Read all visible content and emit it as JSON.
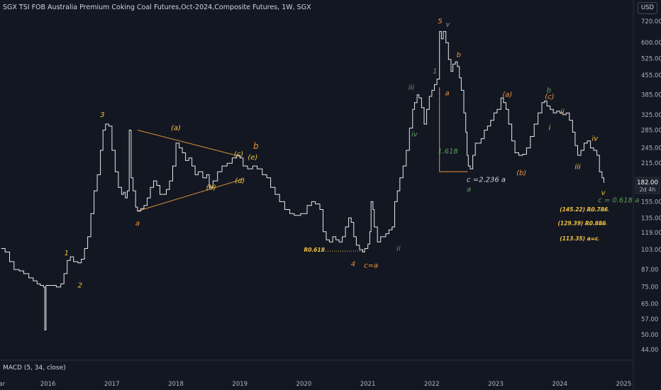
{
  "header": {
    "title": "SGX TSI FOB Australia Premium Coking Coal Futures,Oct-2024,Composite Futures, 1W, SGX",
    "currency": "USD"
  },
  "price_tag": {
    "value": "182.00",
    "countdown": "2d 4h"
  },
  "indicator": {
    "label": "MACD (5, 34, close)"
  },
  "chart_data": {
    "type": "line",
    "yscale": "log",
    "ylim": [
      40,
      800
    ],
    "xlim": [
      2015.25,
      2025.15
    ],
    "y_ticks": [
      "720.00",
      "600.00",
      "525.00",
      "455.00",
      "385.00",
      "325.00",
      "285.00",
      "245.00",
      "215.00",
      "182.00",
      "155.00",
      "135.00",
      "119.00",
      "103.00",
      "87.00",
      "75.00",
      "65.00",
      "57.00",
      "50.00",
      "44.00"
    ],
    "x_ticks": [
      {
        "label": "ar",
        "x": 2015.28
      },
      {
        "label": "2016",
        "x": 2016.0
      },
      {
        "label": "2017",
        "x": 2017.0
      },
      {
        "label": "2018",
        "x": 2018.0
      },
      {
        "label": "2019",
        "x": 2019.0
      },
      {
        "label": "2020",
        "x": 2020.0
      },
      {
        "label": "2021",
        "x": 2021.0
      },
      {
        "label": "2022",
        "x": 2022.0
      },
      {
        "label": "2023",
        "x": 2023.0
      },
      {
        "label": "2024",
        "x": 2024.0
      },
      {
        "label": "2025",
        "x": 2025.0
      }
    ],
    "series": [
      {
        "points": [
          [
            2015.27,
            104
          ],
          [
            2015.33,
            101
          ],
          [
            2015.4,
            93
          ],
          [
            2015.47,
            87
          ],
          [
            2015.55,
            86
          ],
          [
            2015.62,
            84
          ],
          [
            2015.7,
            81
          ],
          [
            2015.77,
            79
          ],
          [
            2015.83,
            77
          ],
          [
            2015.88,
            76
          ],
          [
            2015.93,
            75
          ],
          [
            2015.95,
            52
          ],
          [
            2015.97,
            76
          ],
          [
            2016.05,
            76
          ],
          [
            2016.13,
            75
          ],
          [
            2016.2,
            77
          ],
          [
            2016.25,
            84
          ],
          [
            2016.3,
            94
          ],
          [
            2016.35,
            97
          ],
          [
            2016.4,
            93
          ],
          [
            2016.47,
            92
          ],
          [
            2016.52,
            95
          ],
          [
            2016.57,
            104
          ],
          [
            2016.62,
            115
          ],
          [
            2016.67,
            140
          ],
          [
            2016.72,
            170
          ],
          [
            2016.77,
            195
          ],
          [
            2016.82,
            240
          ],
          [
            2016.86,
            285
          ],
          [
            2016.9,
            300
          ],
          [
            2016.95,
            295
          ],
          [
            2017.0,
            240
          ],
          [
            2017.05,
            200
          ],
          [
            2017.1,
            175
          ],
          [
            2017.15,
            165
          ],
          [
            2017.18,
            168
          ],
          [
            2017.21,
            160
          ],
          [
            2017.24,
            170
          ],
          [
            2017.27,
            285
          ],
          [
            2017.3,
            190
          ],
          [
            2017.33,
            170
          ],
          [
            2017.37,
            148
          ],
          [
            2017.4,
            143
          ],
          [
            2017.45,
            146
          ],
          [
            2017.5,
            150
          ],
          [
            2017.55,
            160
          ],
          [
            2017.6,
            175
          ],
          [
            2017.65,
            185
          ],
          [
            2017.7,
            178
          ],
          [
            2017.75,
            165
          ],
          [
            2017.8,
            165
          ],
          [
            2017.85,
            172
          ],
          [
            2017.9,
            185
          ],
          [
            2017.95,
            210
          ],
          [
            2018.0,
            255
          ],
          [
            2018.05,
            245
          ],
          [
            2018.1,
            235
          ],
          [
            2018.15,
            220
          ],
          [
            2018.2,
            225
          ],
          [
            2018.25,
            210
          ],
          [
            2018.3,
            195
          ],
          [
            2018.35,
            200
          ],
          [
            2018.42,
            190
          ],
          [
            2018.48,
            195
          ],
          [
            2018.52,
            175
          ],
          [
            2018.58,
            185
          ],
          [
            2018.65,
            200
          ],
          [
            2018.72,
            210
          ],
          [
            2018.8,
            215
          ],
          [
            2018.88,
            225
          ],
          [
            2018.95,
            230
          ],
          [
            2019.0,
            225
          ],
          [
            2019.05,
            210
          ],
          [
            2019.12,
            205
          ],
          [
            2019.2,
            210
          ],
          [
            2019.27,
            205
          ],
          [
            2019.35,
            195
          ],
          [
            2019.42,
            190
          ],
          [
            2019.48,
            175
          ],
          [
            2019.55,
            165
          ],
          [
            2019.62,
            155
          ],
          [
            2019.7,
            145
          ],
          [
            2019.78,
            140
          ],
          [
            2019.85,
            138
          ],
          [
            2019.95,
            140
          ],
          [
            2020.05,
            150
          ],
          [
            2020.12,
            155
          ],
          [
            2020.18,
            152
          ],
          [
            2020.25,
            145
          ],
          [
            2020.3,
            120
          ],
          [
            2020.35,
            112
          ],
          [
            2020.4,
            110
          ],
          [
            2020.45,
            115
          ],
          [
            2020.5,
            112
          ],
          [
            2020.55,
            110
          ],
          [
            2020.6,
            115
          ],
          [
            2020.65,
            125
          ],
          [
            2020.7,
            135
          ],
          [
            2020.74,
            130
          ],
          [
            2020.78,
            115
          ],
          [
            2020.82,
            107
          ],
          [
            2020.87,
            103
          ],
          [
            2020.92,
            101
          ],
          [
            2020.95,
            104
          ],
          [
            2021.0,
            108
          ],
          [
            2021.03,
            120
          ],
          [
            2021.05,
            155
          ],
          [
            2021.08,
            145
          ],
          [
            2021.1,
            125
          ],
          [
            2021.15,
            110
          ],
          [
            2021.2,
            115
          ],
          [
            2021.28,
            118
          ],
          [
            2021.33,
            122
          ],
          [
            2021.38,
            125
          ],
          [
            2021.42,
            155
          ],
          [
            2021.46,
            170
          ],
          [
            2021.5,
            190
          ],
          [
            2021.55,
            210
          ],
          [
            2021.6,
            240
          ],
          [
            2021.65,
            290
          ],
          [
            2021.7,
            340
          ],
          [
            2021.73,
            360
          ],
          [
            2021.77,
            385
          ],
          [
            2021.8,
            375
          ],
          [
            2021.84,
            345
          ],
          [
            2021.88,
            300
          ],
          [
            2021.92,
            340
          ],
          [
            2021.96,
            380
          ],
          [
            2022.0,
            400
          ],
          [
            2022.04,
            420
          ],
          [
            2022.08,
            440
          ],
          [
            2022.12,
            660
          ],
          [
            2022.15,
            620
          ],
          [
            2022.18,
            660
          ],
          [
            2022.22,
            600
          ],
          [
            2022.26,
            520
          ],
          [
            2022.3,
            470
          ],
          [
            2022.33,
            500
          ],
          [
            2022.37,
            510
          ],
          [
            2022.4,
            490
          ],
          [
            2022.43,
            445
          ],
          [
            2022.46,
            400
          ],
          [
            2022.5,
            330
          ],
          [
            2022.53,
            280
          ],
          [
            2022.55,
            230
          ],
          [
            2022.57,
            210
          ],
          [
            2022.6,
            205
          ],
          [
            2022.64,
            230
          ],
          [
            2022.68,
            255
          ],
          [
            2022.72,
            255
          ],
          [
            2022.77,
            265
          ],
          [
            2022.82,
            285
          ],
          [
            2022.87,
            295
          ],
          [
            2022.92,
            310
          ],
          [
            2022.97,
            330
          ],
          [
            2023.02,
            340
          ],
          [
            2023.08,
            375
          ],
          [
            2023.12,
            360
          ],
          [
            2023.16,
            340
          ],
          [
            2023.2,
            300
          ],
          [
            2023.25,
            260
          ],
          [
            2023.3,
            235
          ],
          [
            2023.36,
            230
          ],
          [
            2023.42,
            232
          ],
          [
            2023.48,
            245
          ],
          [
            2023.54,
            270
          ],
          [
            2023.6,
            300
          ],
          [
            2023.66,
            330
          ],
          [
            2023.72,
            360
          ],
          [
            2023.76,
            365
          ],
          [
            2023.8,
            350
          ],
          [
            2023.85,
            340
          ],
          [
            2023.9,
            330
          ],
          [
            2023.95,
            335
          ],
          [
            2024.0,
            330
          ],
          [
            2024.05,
            325
          ],
          [
            2024.1,
            330
          ],
          [
            2024.15,
            310
          ],
          [
            2024.2,
            280
          ],
          [
            2024.24,
            250
          ],
          [
            2024.28,
            230
          ],
          [
            2024.33,
            240
          ],
          [
            2024.38,
            255
          ],
          [
            2024.43,
            260
          ],
          [
            2024.48,
            245
          ],
          [
            2024.53,
            240
          ],
          [
            2024.58,
            230
          ],
          [
            2024.62,
            200
          ],
          [
            2024.66,
            190
          ],
          [
            2024.69,
            182
          ]
        ]
      }
    ],
    "annotations": [
      {
        "text": "1",
        "x": 2016.29,
        "y": 100,
        "color": "#f0c040"
      },
      {
        "text": "2",
        "x": 2016.5,
        "y": 76,
        "color": "#f0c040"
      },
      {
        "text": "3",
        "x": 2016.85,
        "y": 325,
        "color": "#f0c040"
      },
      {
        "text": "(a)",
        "x": 2018.0,
        "y": 290,
        "color": "#f0c040"
      },
      {
        "text": "(b)",
        "x": 2018.55,
        "y": 175,
        "color": "#f0c040"
      },
      {
        "text": "(c)",
        "x": 2018.98,
        "y": 232,
        "color": "#f0c040"
      },
      {
        "text": "(d)",
        "x": 2019.0,
        "y": 185,
        "color": "#f0c040"
      },
      {
        "text": "(e)",
        "x": 2019.2,
        "y": 226,
        "color": "#f0c040"
      },
      {
        "text": "b",
        "x": 2019.25,
        "y": 247,
        "color": "#f0923a",
        "size": 12
      },
      {
        "text": "a",
        "x": 2017.4,
        "y": 129,
        "color": "#f0923a"
      },
      {
        "text": "4",
        "x": 2020.77,
        "y": 91,
        "color": "#f0923a"
      },
      {
        "text": "c=a",
        "x": 2021.05,
        "y": 90,
        "color": "#f0923a"
      },
      {
        "text": "5",
        "x": 2022.13,
        "y": 720,
        "color": "#f0923a"
      },
      {
        "text": "b",
        "x": 2022.42,
        "y": 540,
        "color": "#f0923a"
      },
      {
        "text": "a",
        "x": 2022.24,
        "y": 390,
        "color": "#f0923a"
      },
      {
        "text": "(a)",
        "x": 2023.18,
        "y": 385,
        "color": "#f0923a"
      },
      {
        "text": "(b)",
        "x": 2023.4,
        "y": 198,
        "color": "#f0923a"
      },
      {
        "text": "(c)",
        "x": 2023.84,
        "y": 378,
        "color": "#f0923a"
      },
      {
        "text": "v",
        "x": 2022.25,
        "y": 700,
        "color": "#8a8f98"
      },
      {
        "text": "iii",
        "x": 2021.68,
        "y": 410,
        "color": "#5aa05a"
      },
      {
        "text": "iv",
        "x": 2021.73,
        "y": 275,
        "color": "#5aa05a"
      },
      {
        "text": "1",
        "x": 2022.05,
        "y": 470,
        "color": "#5aa05a"
      },
      {
        "text": "a",
        "x": 2022.58,
        "y": 172,
        "color": "#5aa05a"
      },
      {
        "text": "b",
        "x": 2023.83,
        "y": 400,
        "color": "#5aa05a"
      },
      {
        "text": "ii",
        "x": 2021.48,
        "y": 104,
        "color": "#6b8a6b"
      },
      {
        "text": "ii",
        "x": 2024.04,
        "y": 332,
        "color": "#f0c040"
      },
      {
        "text": "i",
        "x": 2023.84,
        "y": 290,
        "color": "#f0c040"
      },
      {
        "text": "iii",
        "x": 2024.28,
        "y": 208,
        "color": "#f0c040"
      },
      {
        "text": "iv",
        "x": 2024.55,
        "y": 265,
        "color": "#f0c040"
      },
      {
        "text": "v",
        "x": 2024.68,
        "y": 167,
        "color": "#f0c040"
      },
      {
        "text": "1.618",
        "x": 2022.25,
        "y": 238,
        "color": "#5aa05a"
      },
      {
        "text": "c =2.236 a",
        "x": 2022.85,
        "y": 187,
        "color": "#d1d4dc"
      },
      {
        "text": "c = 0.618 a",
        "x": 2024.92,
        "y": 157,
        "color": "#5aa05a"
      },
      {
        "text": "R0.618",
        "x": 2020.0,
        "y": 103,
        "color": "#f0c040",
        "dotted_to": 2020.92
      },
      {
        "text": "(145.22) R0.786",
        "x": 2024.0,
        "y": 145.22,
        "color": "#f0c040",
        "dotted_to": 2024.4
      },
      {
        "text": "(129.39) R0.886",
        "x": 2023.97,
        "y": 129.39,
        "color": "#f0c040",
        "dotted_to": 2024.38
      },
      {
        "text": "(113.35) a=c",
        "x": 2024.0,
        "y": 113.35,
        "color": "#f0c040",
        "dotted_to": 2024.47
      }
    ],
    "trendlines": [
      {
        "from": [
          2017.4,
          285
        ],
        "to": [
          2019.0,
          228
        ],
        "color": "#d9933a"
      },
      {
        "from": [
          2017.4,
          143
        ],
        "to": [
          2019.05,
          188
        ],
        "color": "#d9933a"
      }
    ],
    "rectangles": [
      {
        "x0": 2022.12,
        "y0": 410,
        "x1": 2022.56,
        "y1": 200,
        "color": "#f0923a"
      }
    ]
  }
}
